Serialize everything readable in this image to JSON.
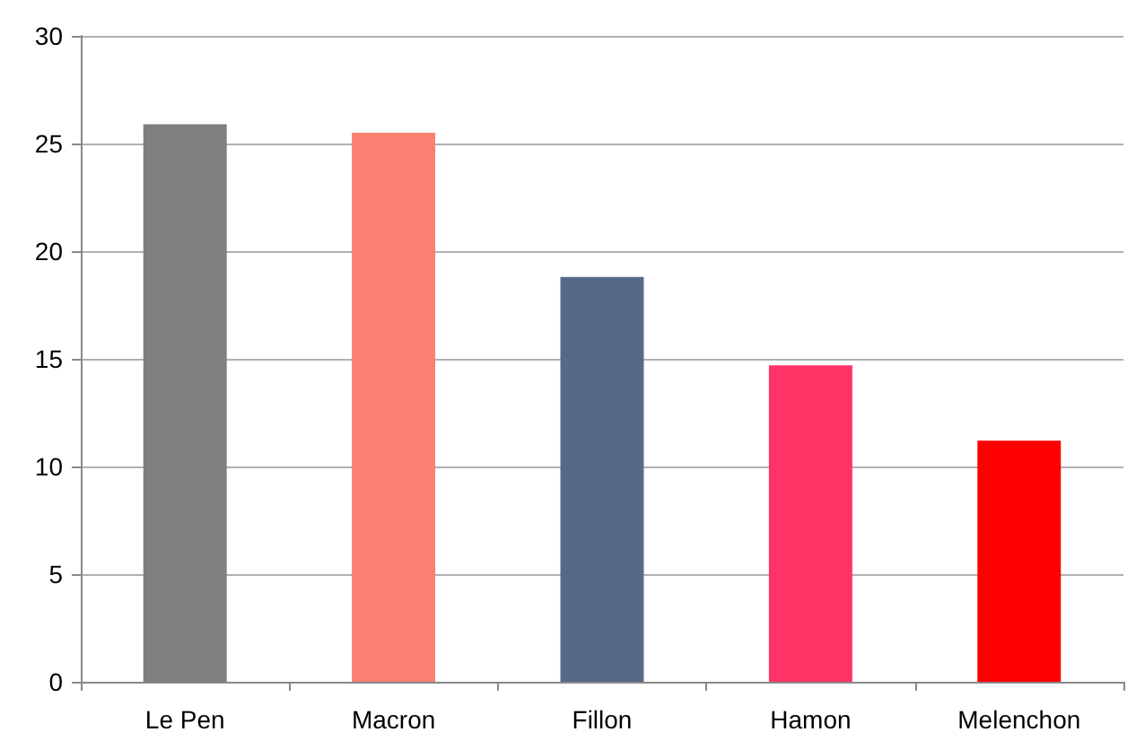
{
  "chart_data": {
    "type": "bar",
    "categories": [
      "Le Pen",
      "Macron",
      "Fillon",
      "Hamon",
      "Melenchon"
    ],
    "values": [
      25.9,
      25.5,
      18.8,
      14.7,
      11.2
    ],
    "colors": [
      "#7f7f7f",
      "#fa8072",
      "#566a87",
      "#ff3366",
      "#ff0000"
    ],
    "ylim": [
      0,
      30
    ],
    "yticks": [
      0,
      5,
      10,
      15,
      20,
      25,
      30
    ],
    "grid": "y"
  }
}
